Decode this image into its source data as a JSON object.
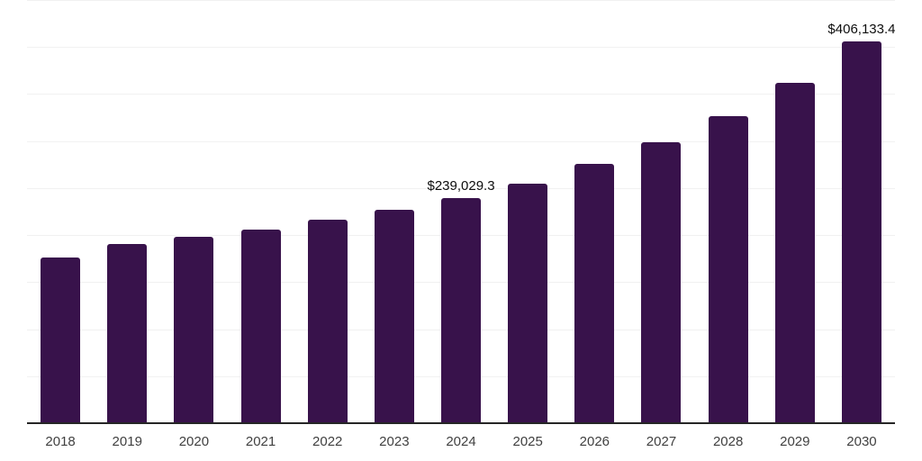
{
  "chart_data": {
    "type": "bar",
    "title": "",
    "xlabel": "",
    "ylabel": "",
    "categories": [
      "2018",
      "2019",
      "2020",
      "2021",
      "2022",
      "2023",
      "2024",
      "2025",
      "2026",
      "2027",
      "2028",
      "2029",
      "2030"
    ],
    "values": [
      175900,
      191000,
      198400,
      206300,
      216200,
      226500,
      239029.3,
      254300,
      275700,
      298500,
      326300,
      362100,
      406133.4
    ],
    "data_labels": {
      "2024": "$239,029.3",
      "2030": "$406,133.4"
    },
    "ylim": [
      0,
      450000
    ],
    "gridline_step": 50000,
    "grid": "horizontal",
    "legend": "none",
    "colors": {
      "bar": "#38124B",
      "axis_line": "#262626",
      "gridline": "#f1f1f1",
      "x_tick_label": "#404040",
      "data_label": "#0d0d0d",
      "background": "#ffffff"
    }
  }
}
